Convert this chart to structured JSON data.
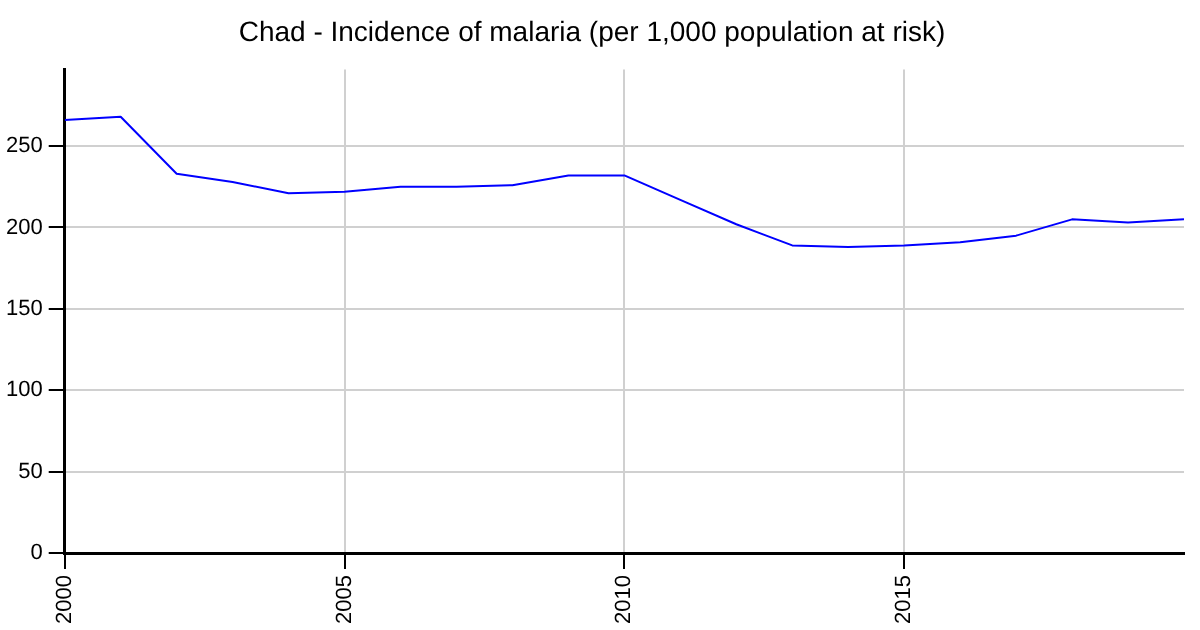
{
  "chart_data": {
    "type": "line",
    "title": "Chad - Incidence of malaria (per 1,000 population at risk)",
    "x": [
      2000,
      2001,
      2002,
      2003,
      2004,
      2005,
      2006,
      2007,
      2008,
      2009,
      2010,
      2011,
      2012,
      2013,
      2014,
      2015,
      2016,
      2017,
      2018,
      2019,
      2020
    ],
    "series": [
      {
        "color": "#0000ff",
        "values": [
          266,
          268,
          233,
          228,
          221,
          222,
          225,
          225,
          226,
          232,
          232,
          217,
          202,
          189,
          188,
          189,
          191,
          195,
          205,
          203,
          205
        ]
      }
    ],
    "xlim": [
      2000,
      2020
    ],
    "xticks": [
      2000,
      2005,
      2010,
      2015
    ],
    "ylim": [
      0,
      297
    ],
    "yticks": [
      0,
      50,
      100,
      150,
      200,
      250
    ],
    "grid": true,
    "legend": false,
    "marker": "none",
    "line_style": "solid"
  }
}
